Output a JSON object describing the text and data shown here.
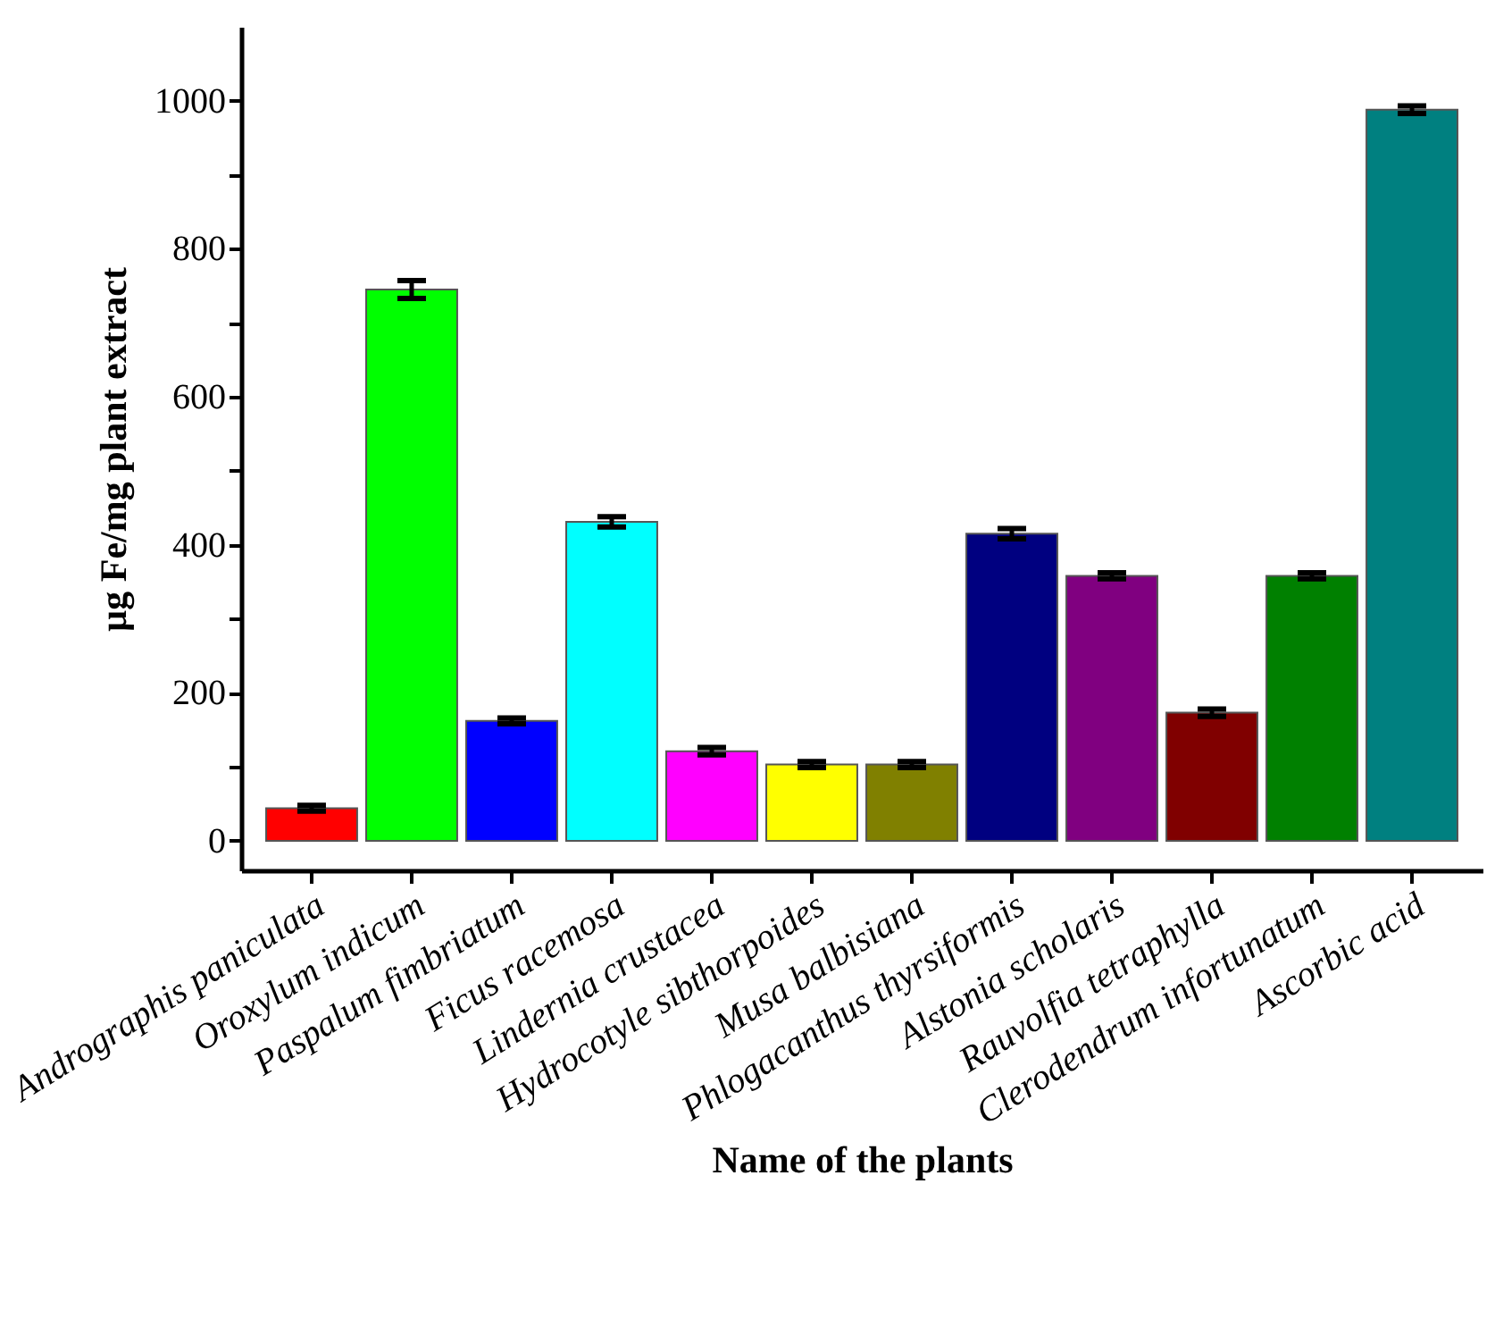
{
  "chart_data": {
    "type": "bar",
    "xlabel": "Name of the plants",
    "ylabel": "µg Fe/mg plant extract",
    "categories": [
      "Andrographis paniculata",
      "Oroxylum indicum",
      "Paspalum fimbriatum",
      "Ficus racemosa",
      "Lindernia crustacea",
      "Hydrocotyle sibthorpoides",
      "Musa balbisiana",
      "Phlogacanthus thyrsiformis",
      "Alstonia scholaris",
      "Rauvolfia tetraphylla",
      "Clerodendrum infortunatum",
      "Ascorbic acid"
    ],
    "values": [
      44,
      745,
      162,
      431,
      121,
      103,
      103,
      415,
      358,
      173,
      358,
      988
    ],
    "errors": [
      4,
      12,
      4,
      7,
      5,
      4,
      4,
      7,
      4,
      5,
      4,
      5
    ],
    "colors": [
      "#ff0000",
      "#00ff00",
      "#0000ff",
      "#00ffff",
      "#ff00ff",
      "#ffff00",
      "#808000",
      "#000080",
      "#800080",
      "#800000",
      "#008000",
      "#008080"
    ],
    "ylim": [
      -40,
      1100
    ],
    "yticks": [
      0,
      {
        "value": 100,
        "label": null
      },
      200,
      {
        "value": 300,
        "label": null
      },
      400,
      {
        "value": 500,
        "label": null
      },
      600,
      {
        "value": 700,
        "label": null
      },
      800,
      {
        "value": 900,
        "label": null
      },
      1000
    ],
    "grid": false
  }
}
